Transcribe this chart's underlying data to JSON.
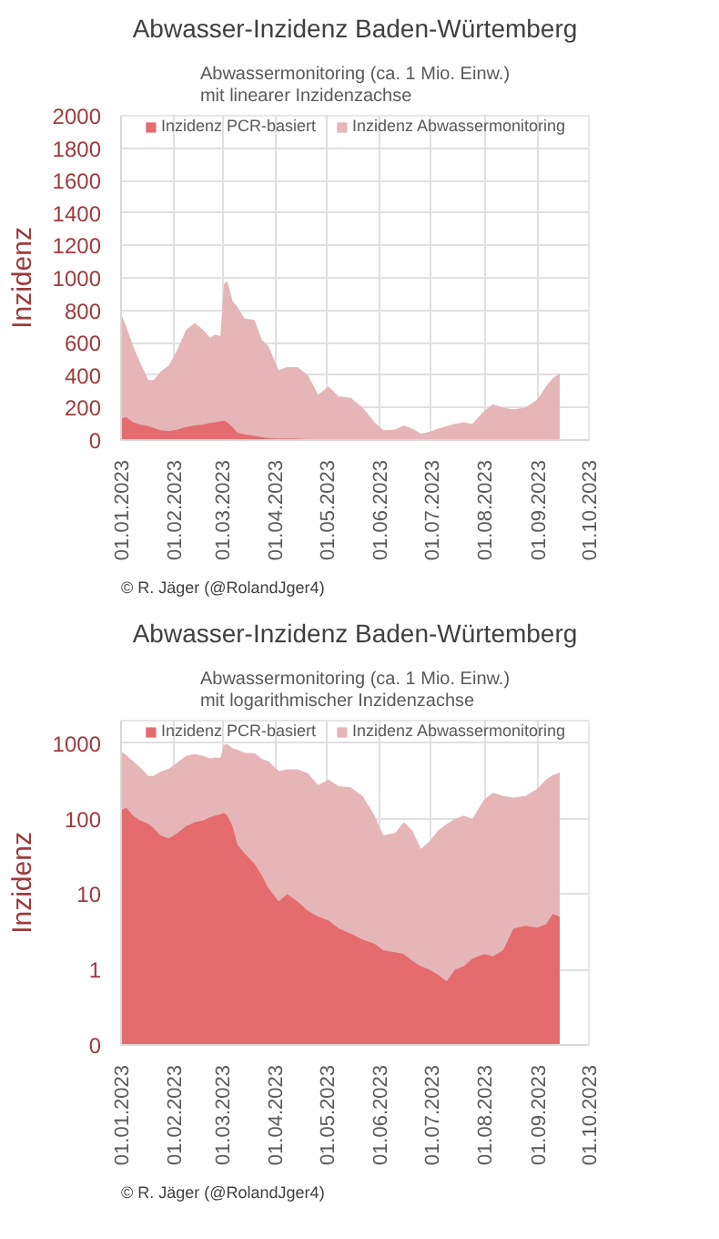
{
  "chart_data": [
    {
      "type": "area",
      "title": "Abwasser-Inzidenz Baden-Würtemberg",
      "subtitle": "Abwassermonitoring (ca. 1 Mio. Einw.)\nmit linearer Inzidenzachse",
      "ylabel": "Inzidenz",
      "annotations": [
        "© R. Jäger (@RolandJger4)"
      ],
      "x": [
        "2023-01-01",
        "2023-01-04",
        "2023-01-08",
        "2023-01-12",
        "2023-01-17",
        "2023-01-20",
        "2023-01-24",
        "2023-01-29",
        "2023-02-03",
        "2023-02-08",
        "2023-02-13",
        "2023-02-18",
        "2023-02-22",
        "2023-02-25",
        "2023-02-28",
        "2023-03-02",
        "2023-03-04",
        "2023-03-07",
        "2023-03-10",
        "2023-03-14",
        "2023-03-20",
        "2023-03-24",
        "2023-03-28",
        "2023-04-03",
        "2023-04-08",
        "2023-04-14",
        "2023-04-20",
        "2023-04-26",
        "2023-05-02",
        "2023-05-08",
        "2023-05-15",
        "2023-05-22",
        "2023-05-29",
        "2023-06-03",
        "2023-06-10",
        "2023-06-15",
        "2023-06-20",
        "2023-06-25",
        "2023-06-30",
        "2023-07-05",
        "2023-07-10",
        "2023-07-15",
        "2023-07-20",
        "2023-07-25",
        "2023-08-01",
        "2023-08-06",
        "2023-08-12",
        "2023-08-18",
        "2023-08-25",
        "2023-09-01",
        "2023-09-06",
        "2023-09-10",
        "2023-09-14"
      ],
      "series": [
        {
          "name": "Inzidenz Abwassermonitoring",
          "color": "#e6b5b7",
          "values": [
            780,
            700,
            580,
            480,
            370,
            370,
            420,
            460,
            560,
            680,
            720,
            680,
            630,
            650,
            640,
            960,
            980,
            860,
            820,
            750,
            740,
            620,
            580,
            430,
            450,
            450,
            400,
            280,
            330,
            270,
            260,
            200,
            110,
            60,
            65,
            90,
            70,
            40,
            50,
            70,
            85,
            100,
            110,
            100,
            180,
            220,
            200,
            190,
            200,
            250,
            330,
            380,
            410
          ]
        },
        {
          "name": "Inzidenz PCR-basiert",
          "color": "#e46c6e",
          "values": [
            130,
            140,
            110,
            95,
            85,
            75,
            60,
            55,
            65,
            80,
            90,
            95,
            105,
            110,
            115,
            120,
            110,
            80,
            45,
            35,
            25,
            18,
            12,
            8,
            10,
            8,
            6,
            5,
            4.5,
            3.5,
            3,
            2.5,
            2.2,
            1.8,
            1.7,
            1.6,
            1.3,
            1.1,
            1.0,
            0.85,
            0.7,
            1.0,
            1.1,
            1.4,
            1.6,
            1.5,
            1.8,
            3.5,
            3.8,
            3.6,
            4,
            5.5,
            5
          ]
        }
      ],
      "xlim": [
        "2023-01-01",
        "2023-10-01"
      ],
      "xticks": [
        {
          "value": "2023-01-01",
          "label": "01.01.2023"
        },
        {
          "value": "2023-02-01",
          "label": "01.02.2023"
        },
        {
          "value": "2023-03-01",
          "label": "01.03.2023"
        },
        {
          "value": "2023-04-01",
          "label": "01.04.2023"
        },
        {
          "value": "2023-05-01",
          "label": "01.05.2023"
        },
        {
          "value": "2023-06-01",
          "label": "01.06.2023"
        },
        {
          "value": "2023-07-01",
          "label": "01.07.2023"
        },
        {
          "value": "2023-08-01",
          "label": "01.08.2023"
        },
        {
          "value": "2023-09-01",
          "label": "01.09.2023"
        },
        {
          "value": "2023-10-01",
          "label": "01.10.2023"
        }
      ],
      "ylim": [
        0,
        2000
      ],
      "yticks": [
        0,
        200,
        400,
        600,
        800,
        1000,
        1200,
        1400,
        1600,
        1800,
        2000
      ],
      "grid": true,
      "legend": "top"
    },
    {
      "type": "area",
      "title": "Abwasser-Inzidenz Baden-Würtemberg",
      "subtitle": "Abwassermonitoring (ca. 1 Mio. Einw.)\nmit logarithmischer Inzidenzachse",
      "ylabel": "Inzidenz",
      "annotations": [
        "© R. Jäger (@RolandJger4)"
      ],
      "log": "y",
      "x": [
        "2023-01-01",
        "2023-01-04",
        "2023-01-08",
        "2023-01-12",
        "2023-01-17",
        "2023-01-20",
        "2023-01-24",
        "2023-01-29",
        "2023-02-03",
        "2023-02-08",
        "2023-02-13",
        "2023-02-18",
        "2023-02-22",
        "2023-02-25",
        "2023-02-28",
        "2023-03-02",
        "2023-03-04",
        "2023-03-07",
        "2023-03-10",
        "2023-03-14",
        "2023-03-20",
        "2023-03-24",
        "2023-03-28",
        "2023-04-03",
        "2023-04-08",
        "2023-04-14",
        "2023-04-20",
        "2023-04-26",
        "2023-05-02",
        "2023-05-08",
        "2023-05-15",
        "2023-05-22",
        "2023-05-29",
        "2023-06-03",
        "2023-06-10",
        "2023-06-15",
        "2023-06-20",
        "2023-06-25",
        "2023-06-30",
        "2023-07-05",
        "2023-07-10",
        "2023-07-15",
        "2023-07-20",
        "2023-07-25",
        "2023-08-01",
        "2023-08-06",
        "2023-08-12",
        "2023-08-18",
        "2023-08-25",
        "2023-09-01",
        "2023-09-06",
        "2023-09-10",
        "2023-09-14"
      ],
      "series": [
        {
          "name": "Inzidenz Abwassermonitoring",
          "color": "#e6b5b7",
          "values": [
            780,
            700,
            580,
            480,
            370,
            370,
            420,
            460,
            560,
            680,
            720,
            680,
            630,
            650,
            640,
            960,
            980,
            860,
            820,
            750,
            740,
            620,
            580,
            430,
            450,
            450,
            400,
            280,
            330,
            270,
            260,
            200,
            110,
            60,
            65,
            90,
            70,
            40,
            50,
            70,
            85,
            100,
            110,
            100,
            180,
            220,
            200,
            190,
            200,
            250,
            330,
            380,
            410
          ]
        },
        {
          "name": "Inzidenz PCR-basiert",
          "color": "#e46c6e",
          "values": [
            130,
            140,
            110,
            95,
            85,
            75,
            60,
            55,
            65,
            80,
            90,
            95,
            105,
            110,
            115,
            120,
            110,
            80,
            45,
            35,
            25,
            18,
            12,
            8,
            10,
            8,
            6,
            5,
            4.5,
            3.5,
            3,
            2.5,
            2.2,
            1.8,
            1.7,
            1.6,
            1.3,
            1.1,
            1.0,
            0.85,
            0.7,
            1.0,
            1.1,
            1.4,
            1.6,
            1.5,
            1.8,
            3.5,
            3.8,
            3.6,
            4,
            5.5,
            5
          ]
        }
      ],
      "xlim": [
        "2023-01-01",
        "2023-10-01"
      ],
      "xticks": [
        {
          "value": "2023-01-01",
          "label": "01.01.2023"
        },
        {
          "value": "2023-02-01",
          "label": "01.02.2023"
        },
        {
          "value": "2023-03-01",
          "label": "01.03.2023"
        },
        {
          "value": "2023-04-01",
          "label": "01.04.2023"
        },
        {
          "value": "2023-05-01",
          "label": "01.05.2023"
        },
        {
          "value": "2023-06-01",
          "label": "01.06.2023"
        },
        {
          "value": "2023-07-01",
          "label": "01.07.2023"
        },
        {
          "value": "2023-08-01",
          "label": "01.08.2023"
        },
        {
          "value": "2023-09-01",
          "label": "01.09.2023"
        },
        {
          "value": "2023-10-01",
          "label": "01.10.2023"
        }
      ],
      "ylim": [
        0.1,
        2000
      ],
      "yticks": [
        {
          "value": 0.1,
          "label": "0"
        },
        1,
        10,
        100,
        1000
      ],
      "grid": true,
      "legend": "top"
    }
  ]
}
